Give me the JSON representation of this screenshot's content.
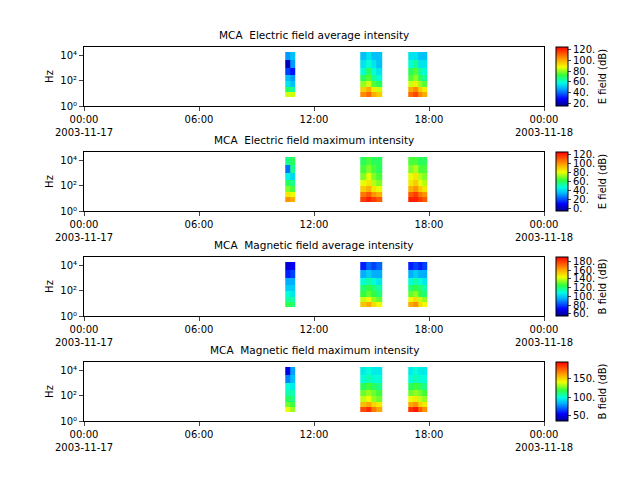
{
  "chart_data": [
    {
      "type": "heatmap",
      "title": "MCA  Electric field average intensity",
      "ylabel": "Hz",
      "colorbar_title": "E field (dB)",
      "log": "y",
      "grid": false,
      "xlim": [
        "2003-11-17 00:00",
        "2003-11-18 00:00"
      ],
      "xticks": [
        {
          "value": "2003-11-17 00:00",
          "label": "00:00\n2003-11-17"
        },
        {
          "value": "2003-11-17 06:00",
          "label": "06:00"
        },
        {
          "value": "2003-11-17 12:00",
          "label": "12:00"
        },
        {
          "value": "2003-11-17 18:00",
          "label": "18:00"
        },
        {
          "value": "2003-11-18 00:00",
          "label": "00:00\n2003-11-18"
        }
      ],
      "ylim": [
        1,
        50000
      ],
      "yticks": [
        {
          "value": 1,
          "label": "10⁰"
        },
        {
          "value": 100,
          "label": "10²"
        },
        {
          "value": 10000,
          "label": "10⁴"
        }
      ],
      "zlim": [
        15,
        125
      ],
      "zticks": [
        {
          "value": 20,
          "label": "20."
        },
        {
          "value": 40,
          "label": "40."
        },
        {
          "value": 60,
          "label": "60."
        },
        {
          "value": 80,
          "label": "80."
        },
        {
          "value": 100,
          "label": "100."
        },
        {
          "value": 120,
          "label": "120."
        }
      ],
      "x": [
        "2003-11-17 10:30",
        "2003-11-17 10:45",
        "2003-11-17 11:00",
        "2003-11-17 14:25",
        "2003-11-17 14:42",
        "2003-11-17 14:59",
        "2003-11-17 15:16",
        "2003-11-17 15:33",
        "2003-11-17 16:55",
        "2003-11-17 17:10",
        "2003-11-17 17:25",
        "2003-11-17 17:40",
        "2003-11-17 17:55"
      ],
      "y": [
        5,
        12,
        30,
        100,
        300,
        1000,
        5000,
        20000
      ],
      "z": [
        [
          85,
          85,
          null,
          105,
          110,
          100,
          95,
          null,
          110,
          115,
          105,
          100
        ],
        [
          70,
          65,
          null,
          95,
          100,
          90,
          85,
          null,
          100,
          105,
          95,
          90
        ],
        [
          55,
          50,
          null,
          80,
          85,
          75,
          70,
          null,
          85,
          90,
          80,
          75
        ],
        [
          50,
          45,
          null,
          70,
          75,
          65,
          60,
          null,
          75,
          80,
          70,
          65
        ],
        [
          35,
          30,
          null,
          60,
          70,
          60,
          55,
          null,
          70,
          75,
          65,
          60
        ],
        [
          20,
          45,
          null,
          55,
          60,
          55,
          50,
          null,
          60,
          65,
          55,
          55
        ],
        [
          45,
          50,
          null,
          50,
          55,
          50,
          50,
          null,
          55,
          55,
          50,
          50
        ]
      ]
    },
    {
      "type": "heatmap",
      "title": "MCA  Electric field maximum intensity",
      "ylabel": "Hz",
      "colorbar_title": "E field (dB)",
      "log": "y",
      "grid": false,
      "xlim": [
        "2003-11-17 00:00",
        "2003-11-18 00:00"
      ],
      "xticks": [
        {
          "value": "2003-11-17 00:00",
          "label": "00:00\n2003-11-17"
        },
        {
          "value": "2003-11-17 06:00",
          "label": "06:00"
        },
        {
          "value": "2003-11-17 12:00",
          "label": "12:00"
        },
        {
          "value": "2003-11-17 18:00",
          "label": "18:00"
        },
        {
          "value": "2003-11-18 00:00",
          "label": "00:00\n2003-11-18"
        }
      ],
      "ylim": [
        1,
        50000
      ],
      "yticks": [
        {
          "value": 1,
          "label": "10⁰"
        },
        {
          "value": 100,
          "label": "10²"
        },
        {
          "value": 10000,
          "label": "10⁴"
        }
      ],
      "zlim": [
        -5,
        125
      ],
      "zticks": [
        {
          "value": 0,
          "label": "0."
        },
        {
          "value": 20,
          "label": "20."
        },
        {
          "value": 40,
          "label": "40."
        },
        {
          "value": 60,
          "label": "60."
        },
        {
          "value": 80,
          "label": "80."
        },
        {
          "value": 100,
          "label": "100."
        },
        {
          "value": 120,
          "label": "120."
        }
      ],
      "x": [
        "2003-11-17 10:30",
        "2003-11-17 10:45",
        "2003-11-17 11:00",
        "2003-11-17 14:25",
        "2003-11-17 14:42",
        "2003-11-17 14:59",
        "2003-11-17 15:16",
        "2003-11-17 15:33",
        "2003-11-17 16:55",
        "2003-11-17 17:10",
        "2003-11-17 17:25",
        "2003-11-17 17:40",
        "2003-11-17 17:55"
      ],
      "y": [
        5,
        12,
        30,
        100,
        300,
        1000,
        5000,
        20000
      ],
      "z": [
        [
          100,
          95,
          null,
          115,
          120,
          115,
          110,
          null,
          120,
          120,
          115,
          110
        ],
        [
          85,
          80,
          null,
          105,
          110,
          100,
          95,
          null,
          110,
          115,
          105,
          100
        ],
        [
          70,
          65,
          null,
          90,
          95,
          85,
          80,
          null,
          95,
          100,
          90,
          85
        ],
        [
          60,
          55,
          null,
          80,
          85,
          75,
          70,
          null,
          85,
          90,
          80,
          75
        ],
        [
          45,
          40,
          null,
          70,
          80,
          70,
          65,
          null,
          80,
          85,
          75,
          70
        ],
        [
          25,
          55,
          null,
          65,
          70,
          65,
          60,
          null,
          70,
          75,
          65,
          65
        ],
        [
          55,
          60,
          null,
          60,
          65,
          60,
          60,
          null,
          65,
          65,
          60,
          60
        ]
      ]
    },
    {
      "type": "heatmap",
      "title": "MCA  Magnetic field average intensity",
      "ylabel": "Hz",
      "colorbar_title": "B field (dB)",
      "log": "y",
      "grid": false,
      "xlim": [
        "2003-11-17 00:00",
        "2003-11-18 00:00"
      ],
      "xticks": [
        {
          "value": "2003-11-17 00:00",
          "label": "00:00\n2003-11-17"
        },
        {
          "value": "2003-11-17 06:00",
          "label": "06:00"
        },
        {
          "value": "2003-11-17 12:00",
          "label": "12:00"
        },
        {
          "value": "2003-11-17 18:00",
          "label": "18:00"
        },
        {
          "value": "2003-11-18 00:00",
          "label": "00:00\n2003-11-18"
        }
      ],
      "ylim": [
        1,
        50000
      ],
      "yticks": [
        {
          "value": 1,
          "label": "10⁰"
        },
        {
          "value": 100,
          "label": "10²"
        },
        {
          "value": 10000,
          "label": "10⁴"
        }
      ],
      "zlim": [
        55,
        190
      ],
      "zticks": [
        {
          "value": 60,
          "label": "60."
        },
        {
          "value": 80,
          "label": "80."
        },
        {
          "value": 100,
          "label": "100."
        },
        {
          "value": 120,
          "label": "120."
        },
        {
          "value": 140,
          "label": "140."
        },
        {
          "value": 160,
          "label": "160."
        },
        {
          "value": 180,
          "label": "180."
        }
      ],
      "x": [
        "2003-11-17 10:30",
        "2003-11-17 10:45",
        "2003-11-17 11:00",
        "2003-11-17 14:25",
        "2003-11-17 14:42",
        "2003-11-17 14:59",
        "2003-11-17 15:16",
        "2003-11-17 15:33",
        "2003-11-17 16:55",
        "2003-11-17 17:10",
        "2003-11-17 17:25",
        "2003-11-17 17:40",
        "2003-11-17 17:55"
      ],
      "y": [
        5,
        12,
        30,
        100,
        300,
        1000,
        5000,
        20000
      ],
      "z": [
        [
          125,
          120,
          null,
          155,
          160,
          150,
          145,
          null,
          160,
          165,
          150,
          145
        ],
        [
          115,
          115,
          null,
          140,
          145,
          135,
          130,
          null,
          145,
          150,
          140,
          135
        ],
        [
          110,
          105,
          null,
          125,
          130,
          125,
          120,
          null,
          130,
          135,
          125,
          120
        ],
        [
          100,
          100,
          null,
          120,
          125,
          120,
          115,
          null,
          120,
          125,
          120,
          115
        ],
        [
          95,
          95,
          null,
          110,
          115,
          110,
          105,
          null,
          110,
          115,
          110,
          105
        ],
        [
          75,
          80,
          null,
          95,
          100,
          95,
          95,
          null,
          95,
          100,
          95,
          95
        ],
        [
          65,
          70,
          null,
          75,
          85,
          80,
          85,
          null,
          75,
          80,
          75,
          80
        ]
      ]
    },
    {
      "type": "heatmap",
      "title": "MCA  Magnetic field maximum intensity",
      "ylabel": "Hz",
      "colorbar_title": "B field (dB)",
      "log": "y",
      "grid": false,
      "xlim": [
        "2003-11-17 00:00",
        "2003-11-18 00:00"
      ],
      "xticks": [
        {
          "value": "2003-11-17 00:00",
          "label": "00:00\n2003-11-17"
        },
        {
          "value": "2003-11-17 06:00",
          "label": "06:00"
        },
        {
          "value": "2003-11-17 12:00",
          "label": "12:00"
        },
        {
          "value": "2003-11-17 18:00",
          "label": "18:00"
        },
        {
          "value": "2003-11-18 00:00",
          "label": "00:00\n2003-11-18"
        }
      ],
      "ylim": [
        1,
        50000
      ],
      "yticks": [
        {
          "value": 1,
          "label": "10⁰"
        },
        {
          "value": 100,
          "label": "10²"
        },
        {
          "value": 10000,
          "label": "10⁴"
        }
      ],
      "zlim": [
        35,
        195
      ],
      "zticks": [
        {
          "value": 50,
          "label": "50."
        },
        {
          "value": 100,
          "label": "100."
        },
        {
          "value": 150,
          "label": "150."
        }
      ],
      "x": [
        "2003-11-17 10:30",
        "2003-11-17 10:45",
        "2003-11-17 11:00",
        "2003-11-17 14:25",
        "2003-11-17 14:42",
        "2003-11-17 14:59",
        "2003-11-17 15:16",
        "2003-11-17 15:33",
        "2003-11-17 16:55",
        "2003-11-17 17:10",
        "2003-11-17 17:25",
        "2003-11-17 17:40",
        "2003-11-17 17:55"
      ],
      "y": [
        5,
        12,
        30,
        100,
        300,
        1000,
        5000,
        20000
      ],
      "z": [
        [
          140,
          130,
          null,
          180,
          185,
          170,
          160,
          null,
          185,
          190,
          175,
          165
        ],
        [
          125,
          120,
          null,
          155,
          160,
          150,
          145,
          null,
          160,
          165,
          150,
          145
        ],
        [
          115,
          110,
          null,
          135,
          140,
          130,
          125,
          null,
          140,
          145,
          135,
          130
        ],
        [
          105,
          105,
          null,
          125,
          130,
          125,
          120,
          null,
          125,
          130,
          125,
          120
        ],
        [
          100,
          95,
          null,
          115,
          120,
          115,
          110,
          null,
          115,
          120,
          115,
          110
        ],
        [
          75,
          85,
          null,
          100,
          105,
          100,
          100,
          null,
          100,
          105,
          100,
          100
        ],
        [
          50,
          80,
          null,
          95,
          100,
          95,
          95,
          null,
          95,
          100,
          95,
          95
        ]
      ]
    }
  ]
}
